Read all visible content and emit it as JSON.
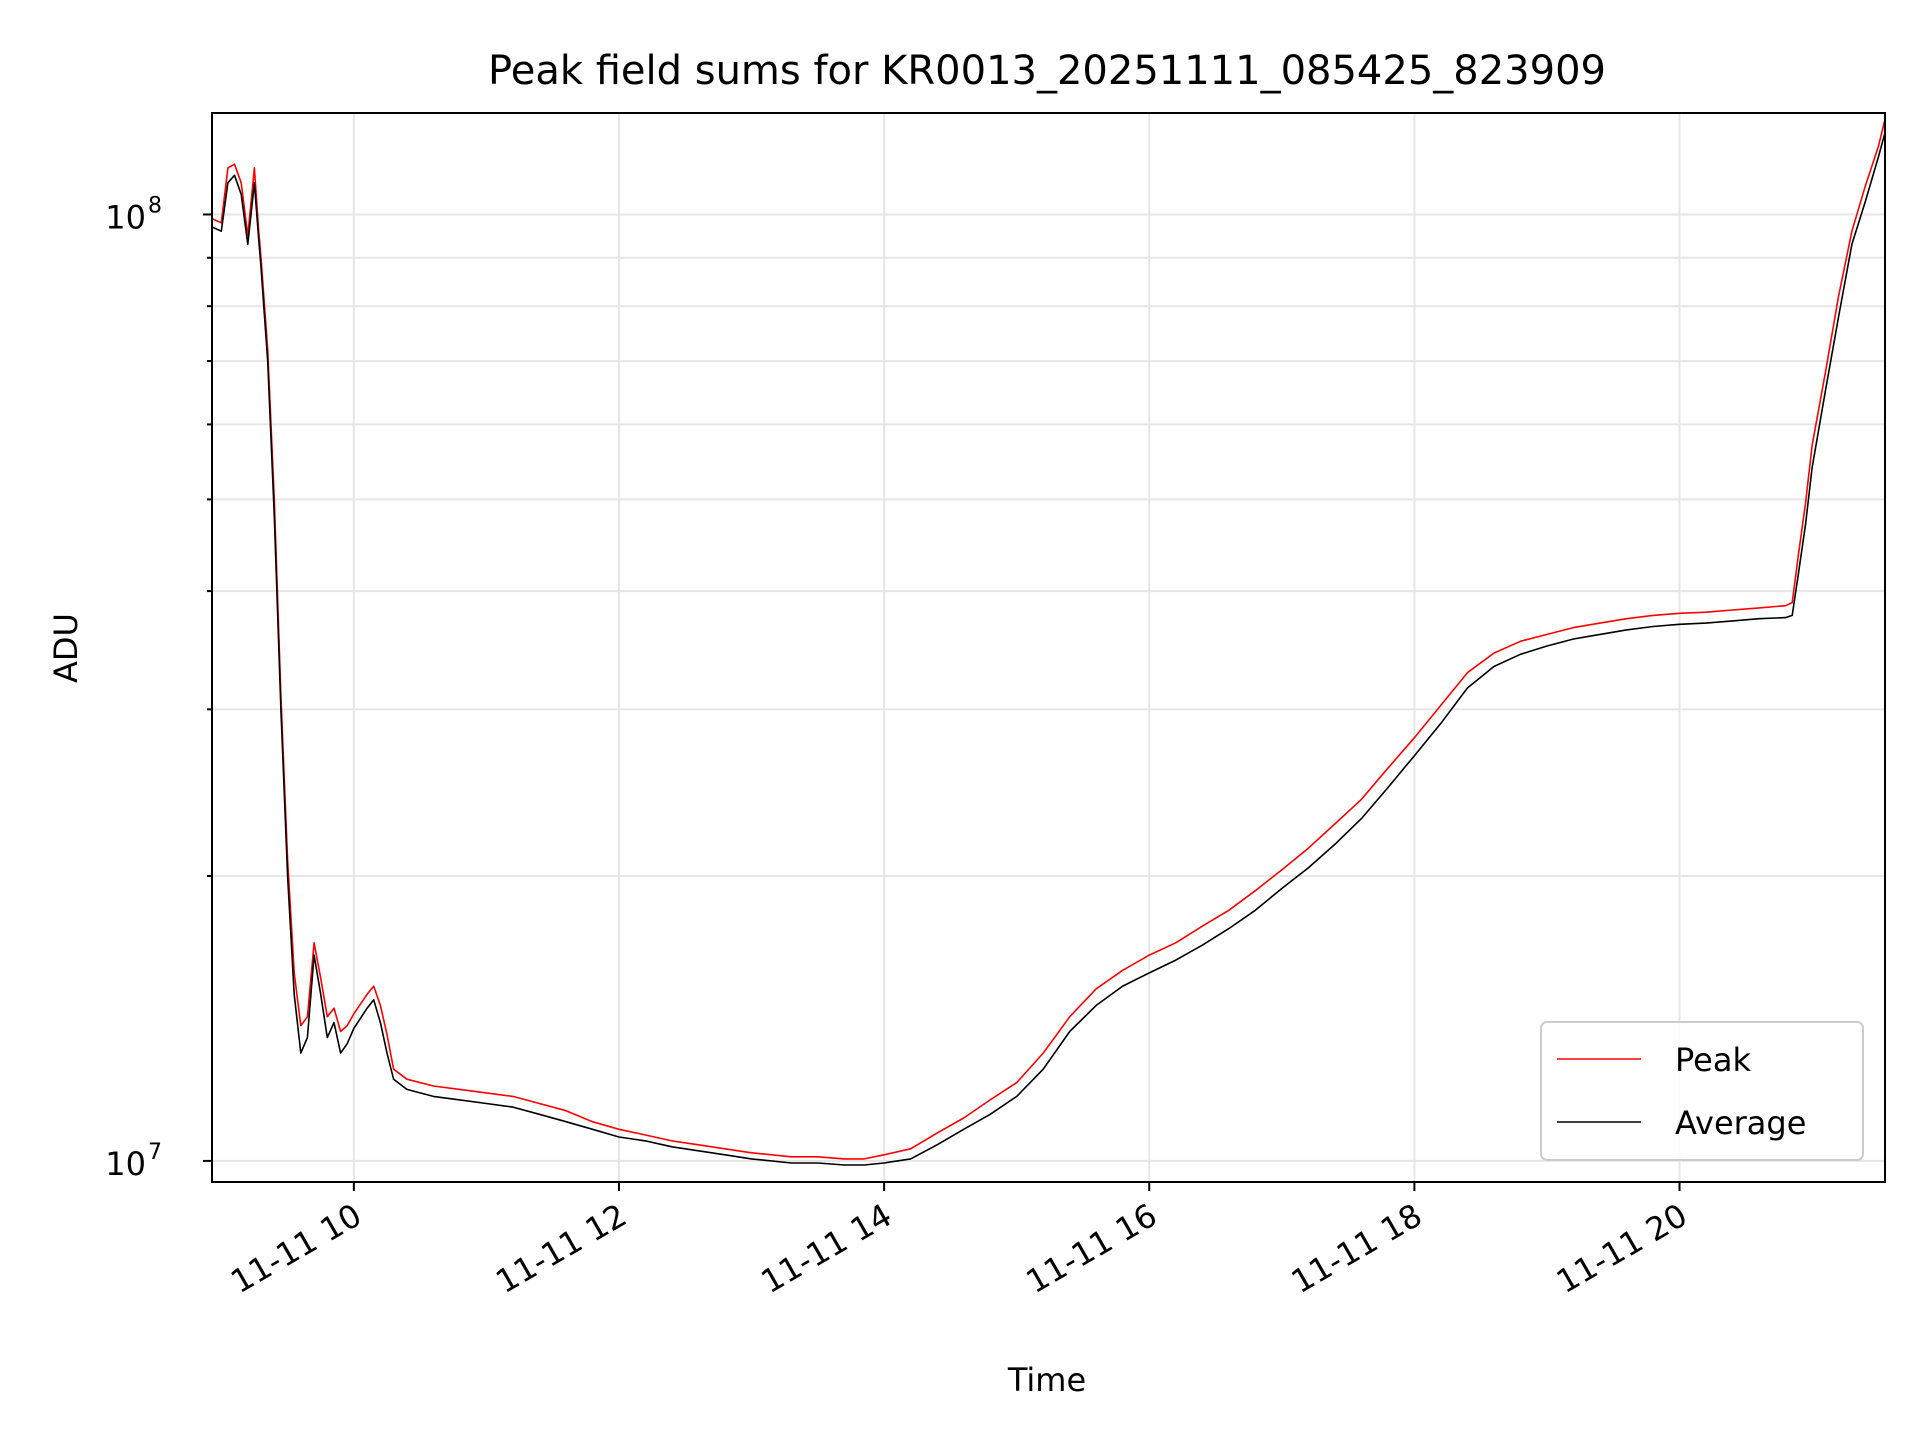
{
  "chart_data": {
    "type": "line",
    "title": "Peak field sums for KR0013_20251111_085425_823909",
    "xlabel": "Time",
    "ylabel": "ADU",
    "yscale": "log",
    "ylim": [
      9500000,
      128000000
    ],
    "xlim_hours": [
      8.93,
      21.55
    ],
    "grid": true,
    "legend_position": "lower right",
    "x_ticks": [
      {
        "hour": 10,
        "label": "11-11 10"
      },
      {
        "hour": 12,
        "label": "11-11 12"
      },
      {
        "hour": 14,
        "label": "11-11 14"
      },
      {
        "hour": 16,
        "label": "11-11 16"
      },
      {
        "hour": 18,
        "label": "11-11 18"
      },
      {
        "hour": 20,
        "label": "11-11 20"
      }
    ],
    "y_ticks": [
      {
        "value": 10000000,
        "base": "10",
        "exp": "7"
      },
      {
        "value": 100000000,
        "base": "10",
        "exp": "8"
      }
    ],
    "series": [
      {
        "name": "Average",
        "color": "#000000",
        "x_hours": [
          8.93,
          9.0,
          9.05,
          9.1,
          9.15,
          9.2,
          9.25,
          9.28,
          9.3,
          9.35,
          9.4,
          9.45,
          9.5,
          9.55,
          9.6,
          9.65,
          9.7,
          9.75,
          9.8,
          9.85,
          9.9,
          9.95,
          10.0,
          10.1,
          10.15,
          10.2,
          10.25,
          10.3,
          10.4,
          10.6,
          10.8,
          11.0,
          11.2,
          11.4,
          11.6,
          11.8,
          12.0,
          12.2,
          12.4,
          12.6,
          12.8,
          13.0,
          13.3,
          13.5,
          13.7,
          13.85,
          14.0,
          14.2,
          14.4,
          14.6,
          14.8,
          15.0,
          15.2,
          15.4,
          15.6,
          15.8,
          16.0,
          16.2,
          16.4,
          16.6,
          16.8,
          17.0,
          17.2,
          17.4,
          17.6,
          17.8,
          18.0,
          18.2,
          18.4,
          18.6,
          18.8,
          19.0,
          19.2,
          19.4,
          19.6,
          19.8,
          20.0,
          20.2,
          20.4,
          20.6,
          20.8,
          20.85,
          20.9,
          20.95,
          21.0,
          21.1,
          21.2,
          21.3,
          21.4,
          21.5,
          21.55
        ],
        "values": [
          97000000,
          96000000,
          108000000,
          110000000,
          105000000,
          93000000,
          108000000,
          95000000,
          88000000,
          70000000,
          48000000,
          30000000,
          20000000,
          15000000,
          13000000,
          13500000,
          16500000,
          15000000,
          13500000,
          14000000,
          13000000,
          13300000,
          13800000,
          14500000,
          14800000,
          14000000,
          13000000,
          12200000,
          11900000,
          11700000,
          11600000,
          11500000,
          11400000,
          11200000,
          11000000,
          10800000,
          10600000,
          10500000,
          10350000,
          10250000,
          10150000,
          10050000,
          9950000,
          9950000,
          9900000,
          9900000,
          9950000,
          10050000,
          10400000,
          10800000,
          11200000,
          11700000,
          12500000,
          13700000,
          14600000,
          15300000,
          15800000,
          16300000,
          16900000,
          17600000,
          18400000,
          19400000,
          20400000,
          21600000,
          23000000,
          24800000,
          26800000,
          29000000,
          31600000,
          33300000,
          34300000,
          35000000,
          35600000,
          36000000,
          36400000,
          36700000,
          36900000,
          37000000,
          37200000,
          37400000,
          37500000,
          37700000,
          42000000,
          47000000,
          54000000,
          65000000,
          78000000,
          93000000,
          103000000,
          115000000,
          122000000
        ]
      },
      {
        "name": "Peak",
        "color": "#ff0000",
        "x_hours": [
          8.93,
          9.0,
          9.05,
          9.1,
          9.15,
          9.2,
          9.25,
          9.28,
          9.3,
          9.35,
          9.4,
          9.45,
          9.5,
          9.55,
          9.6,
          9.65,
          9.7,
          9.75,
          9.8,
          9.85,
          9.9,
          9.95,
          10.0,
          10.1,
          10.15,
          10.2,
          10.25,
          10.3,
          10.4,
          10.6,
          10.8,
          11.0,
          11.2,
          11.4,
          11.6,
          11.8,
          12.0,
          12.2,
          12.4,
          12.6,
          12.8,
          13.0,
          13.3,
          13.5,
          13.7,
          13.85,
          14.0,
          14.2,
          14.4,
          14.6,
          14.8,
          15.0,
          15.2,
          15.4,
          15.6,
          15.8,
          16.0,
          16.2,
          16.4,
          16.6,
          16.8,
          17.0,
          17.2,
          17.4,
          17.6,
          17.8,
          18.0,
          18.2,
          18.4,
          18.6,
          18.8,
          19.0,
          19.2,
          19.4,
          19.6,
          19.8,
          20.0,
          20.2,
          20.4,
          20.6,
          20.8,
          20.85,
          20.9,
          20.95,
          21.0,
          21.1,
          21.2,
          21.3,
          21.4,
          21.5,
          21.55
        ],
        "values": [
          99000000,
          98000000,
          112000000,
          113000000,
          108000000,
          95000000,
          112000000,
          97000000,
          90000000,
          72000000,
          50000000,
          31000000,
          20800000,
          15800000,
          13900000,
          14200000,
          17000000,
          15600000,
          14200000,
          14500000,
          13700000,
          13900000,
          14300000,
          15000000,
          15300000,
          14600000,
          13600000,
          12500000,
          12200000,
          12000000,
          11900000,
          11800000,
          11700000,
          11500000,
          11300000,
          11000000,
          10800000,
          10650000,
          10500000,
          10400000,
          10300000,
          10200000,
          10100000,
          10100000,
          10050000,
          10050000,
          10150000,
          10300000,
          10700000,
          11100000,
          11600000,
          12100000,
          13000000,
          14200000,
          15200000,
          15900000,
          16500000,
          17000000,
          17700000,
          18400000,
          19300000,
          20300000,
          21400000,
          22700000,
          24100000,
          26000000,
          28000000,
          30300000,
          32800000,
          34400000,
          35400000,
          36000000,
          36600000,
          37000000,
          37400000,
          37700000,
          37900000,
          38000000,
          38200000,
          38400000,
          38600000,
          38900000,
          44000000,
          49500000,
          57000000,
          68000000,
          82000000,
          96000000,
          107000000,
          118000000,
          126000000
        ]
      }
    ]
  }
}
